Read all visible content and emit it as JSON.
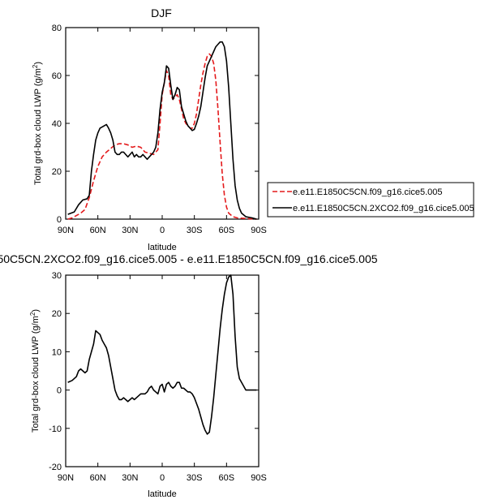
{
  "chart_data": [
    {
      "type": "line",
      "title": "DJF",
      "xlabel": "latitude",
      "ylabel": "Total grd-box cloud LWP (g/m²)",
      "ylabel_main": "Total grd-box cloud LWP (g/m",
      "ylabel_sup": "2",
      "ylabel_close": ")",
      "xlim": [
        90,
        -90
      ],
      "ylim": [
        0,
        80
      ],
      "x_ticks": [
        {
          "value": 90,
          "label": "90N"
        },
        {
          "value": 60,
          "label": "60N"
        },
        {
          "value": 30,
          "label": "30N"
        },
        {
          "value": 0,
          "label": "0"
        },
        {
          "value": -30,
          "label": "30S"
        },
        {
          "value": -60,
          "label": "60S"
        },
        {
          "value": -90,
          "label": "90S"
        }
      ],
      "y_ticks": [
        {
          "value": 0,
          "label": "0"
        },
        {
          "value": 20,
          "label": "20"
        },
        {
          "value": 40,
          "label": "40"
        },
        {
          "value": 60,
          "label": "60"
        },
        {
          "value": 80,
          "label": "80"
        }
      ],
      "legend_position": "right",
      "series": [
        {
          "name": "e.e11.E1850C5CN.f09_g16.cice5.005",
          "color": "#e41a1c",
          "style": "dashed",
          "points": [
            [
              88,
              0
            ],
            [
              84,
              0.5
            ],
            [
              80,
              1.5
            ],
            [
              76,
              2.5
            ],
            [
              72,
              4
            ],
            [
              68,
              9
            ],
            [
              64,
              16
            ],
            [
              60,
              22
            ],
            [
              56,
              26
            ],
            [
              52,
              28
            ],
            [
              48,
              29.5
            ],
            [
              44,
              31
            ],
            [
              40,
              31.5
            ],
            [
              36,
              31.5
            ],
            [
              32,
              31
            ],
            [
              28,
              30
            ],
            [
              24,
              30.5
            ],
            [
              20,
              30
            ],
            [
              16,
              28
            ],
            [
              12,
              27.5
            ],
            [
              8,
              27
            ],
            [
              4,
              29
            ],
            [
              2,
              40
            ],
            [
              0,
              52
            ],
            [
              -2,
              57
            ],
            [
              -4,
              62
            ],
            [
              -6,
              60
            ],
            [
              -8,
              52
            ],
            [
              -10,
              50
            ],
            [
              -12,
              51
            ],
            [
              -14,
              52
            ],
            [
              -16,
              50
            ],
            [
              -18,
              46
            ],
            [
              -20,
              42
            ],
            [
              -22,
              40
            ],
            [
              -24,
              39
            ],
            [
              -26,
              38
            ],
            [
              -28,
              38
            ],
            [
              -30,
              40
            ],
            [
              -32,
              44
            ],
            [
              -34,
              50
            ],
            [
              -36,
              56
            ],
            [
              -38,
              61
            ],
            [
              -40,
              65
            ],
            [
              -42,
              68
            ],
            [
              -44,
              69
            ],
            [
              -46,
              68
            ],
            [
              -48,
              65
            ],
            [
              -50,
              58
            ],
            [
              -52,
              46
            ],
            [
              -54,
              32
            ],
            [
              -56,
              19
            ],
            [
              -58,
              10
            ],
            [
              -60,
              5
            ],
            [
              -62,
              2.5
            ],
            [
              -66,
              1
            ],
            [
              -70,
              0.5
            ],
            [
              -80,
              0.2
            ],
            [
              -88,
              0
            ]
          ]
        },
        {
          "name": "e.e11.E1850C5CN.2XCO2.f09_g16.cice5.005",
          "color": "#000000",
          "style": "solid",
          "points": [
            [
              88,
              2
            ],
            [
              82,
              3
            ],
            [
              78,
              6
            ],
            [
              74,
              8
            ],
            [
              70,
              8.5
            ],
            [
              68,
              10
            ],
            [
              66,
              20
            ],
            [
              64,
              27
            ],
            [
              62,
              33
            ],
            [
              60,
              36
            ],
            [
              58,
              38
            ],
            [
              56,
              38.5
            ],
            [
              54,
              39
            ],
            [
              52,
              39.5
            ],
            [
              50,
              38
            ],
            [
              48,
              36
            ],
            [
              46,
              33
            ],
            [
              44,
              28
            ],
            [
              42,
              27
            ],
            [
              40,
              27
            ],
            [
              38,
              28
            ],
            [
              36,
              28
            ],
            [
              34,
              27
            ],
            [
              32,
              26
            ],
            [
              30,
              27
            ],
            [
              28,
              28
            ],
            [
              26,
              26
            ],
            [
              24,
              27
            ],
            [
              22,
              26
            ],
            [
              20,
              26
            ],
            [
              18,
              27
            ],
            [
              16,
              26
            ],
            [
              14,
              25
            ],
            [
              12,
              26
            ],
            [
              10,
              27
            ],
            [
              8,
              28
            ],
            [
              6,
              30
            ],
            [
              4,
              36
            ],
            [
              2,
              46
            ],
            [
              0,
              53
            ],
            [
              -2,
              57
            ],
            [
              -4,
              64
            ],
            [
              -6,
              63
            ],
            [
              -8,
              56
            ],
            [
              -10,
              50
            ],
            [
              -12,
              52
            ],
            [
              -14,
              55
            ],
            [
              -16,
              54
            ],
            [
              -18,
              47
            ],
            [
              -20,
              44
            ],
            [
              -22,
              41
            ],
            [
              -24,
              39
            ],
            [
              -26,
              38
            ],
            [
              -28,
              37
            ],
            [
              -30,
              37.5
            ],
            [
              -32,
              40
            ],
            [
              -34,
              43
            ],
            [
              -36,
              47
            ],
            [
              -38,
              53
            ],
            [
              -40,
              59
            ],
            [
              -42,
              64
            ],
            [
              -44,
              66
            ],
            [
              -46,
              68
            ],
            [
              -48,
              70
            ],
            [
              -50,
              72
            ],
            [
              -52,
              73
            ],
            [
              -54,
              74
            ],
            [
              -56,
              74
            ],
            [
              -58,
              72
            ],
            [
              -60,
              66
            ],
            [
              -62,
              55
            ],
            [
              -64,
              40
            ],
            [
              -66,
              25
            ],
            [
              -68,
              14
            ],
            [
              -70,
              8
            ],
            [
              -72,
              4.5
            ],
            [
              -74,
              2.5
            ],
            [
              -78,
              1
            ],
            [
              -84,
              0.5
            ],
            [
              -88,
              0
            ]
          ]
        }
      ]
    },
    {
      "type": "line",
      "title": "50C5CN.2XCO2.f09_g16.cice5.005 - e.e11.E1850C5CN.f09_g16.cice5.005",
      "xlabel": "latitude",
      "ylabel": "Total grd-box cloud LWP (g/m²)",
      "ylabel_main": "Total grd-box cloud LWP (g/m",
      "ylabel_sup": "2",
      "ylabel_close": ")",
      "xlim": [
        90,
        -90
      ],
      "ylim": [
        -20,
        30
      ],
      "x_ticks": [
        {
          "value": 90,
          "label": "90N"
        },
        {
          "value": 60,
          "label": "60N"
        },
        {
          "value": 30,
          "label": "30N"
        },
        {
          "value": 0,
          "label": "0"
        },
        {
          "value": -30,
          "label": "30S"
        },
        {
          "value": -60,
          "label": "60S"
        },
        {
          "value": -90,
          "label": "90S"
        }
      ],
      "y_ticks": [
        {
          "value": -20,
          "label": "-20"
        },
        {
          "value": -10,
          "label": "-10"
        },
        {
          "value": 0,
          "label": "0"
        },
        {
          "value": 10,
          "label": "10"
        },
        {
          "value": 20,
          "label": "20"
        },
        {
          "value": 30,
          "label": "30"
        }
      ],
      "series": [
        {
          "color": "#000000",
          "style": "solid",
          "points": [
            [
              88,
              2
            ],
            [
              84,
              2.5
            ],
            [
              80,
              3.5
            ],
            [
              78,
              5
            ],
            [
              76,
              5.5
            ],
            [
              74,
              5
            ],
            [
              72,
              4.5
            ],
            [
              70,
              5
            ],
            [
              68,
              8
            ],
            [
              66,
              10
            ],
            [
              64,
              12
            ],
            [
              62,
              15.5
            ],
            [
              60,
              15
            ],
            [
              58,
              14.5
            ],
            [
              56,
              13
            ],
            [
              54,
              12
            ],
            [
              52,
              11
            ],
            [
              50,
              9
            ],
            [
              48,
              6
            ],
            [
              46,
              3
            ],
            [
              44,
              0
            ],
            [
              42,
              -1.5
            ],
            [
              40,
              -2.5
            ],
            [
              38,
              -2.5
            ],
            [
              36,
              -2
            ],
            [
              34,
              -2.5
            ],
            [
              32,
              -3
            ],
            [
              30,
              -2.5
            ],
            [
              28,
              -2
            ],
            [
              26,
              -2.5
            ],
            [
              24,
              -2
            ],
            [
              22,
              -1.5
            ],
            [
              20,
              -1
            ],
            [
              18,
              -1
            ],
            [
              16,
              -1
            ],
            [
              14,
              -0.5
            ],
            [
              12,
              0.5
            ],
            [
              10,
              1
            ],
            [
              8,
              0
            ],
            [
              6,
              -0.5
            ],
            [
              4,
              -1
            ],
            [
              2,
              1
            ],
            [
              0,
              1.5
            ],
            [
              -2,
              -0.5
            ],
            [
              -4,
              1.5
            ],
            [
              -6,
              2
            ],
            [
              -8,
              1
            ],
            [
              -10,
              0.5
            ],
            [
              -12,
              1
            ],
            [
              -14,
              2
            ],
            [
              -16,
              2
            ],
            [
              -18,
              0.5
            ],
            [
              -20,
              0.5
            ],
            [
              -22,
              0
            ],
            [
              -24,
              -0.5
            ],
            [
              -26,
              -0.5
            ],
            [
              -28,
              -1
            ],
            [
              -30,
              -2
            ],
            [
              -32,
              -3.5
            ],
            [
              -34,
              -5
            ],
            [
              -36,
              -7
            ],
            [
              -38,
              -9
            ],
            [
              -40,
              -10.5
            ],
            [
              -42,
              -11.5
            ],
            [
              -44,
              -11
            ],
            [
              -46,
              -7
            ],
            [
              -48,
              -2
            ],
            [
              -50,
              4
            ],
            [
              -52,
              10
            ],
            [
              -54,
              16
            ],
            [
              -56,
              21
            ],
            [
              -58,
              25
            ],
            [
              -60,
              28
            ],
            [
              -62,
              29.5
            ],
            [
              -64,
              30
            ],
            [
              -66,
              25
            ],
            [
              -68,
              14
            ],
            [
              -70,
              6
            ],
            [
              -72,
              3
            ],
            [
              -74,
              2
            ],
            [
              -76,
              1
            ],
            [
              -78,
              0
            ],
            [
              -82,
              0
            ],
            [
              -88,
              0
            ]
          ]
        }
      ]
    }
  ]
}
